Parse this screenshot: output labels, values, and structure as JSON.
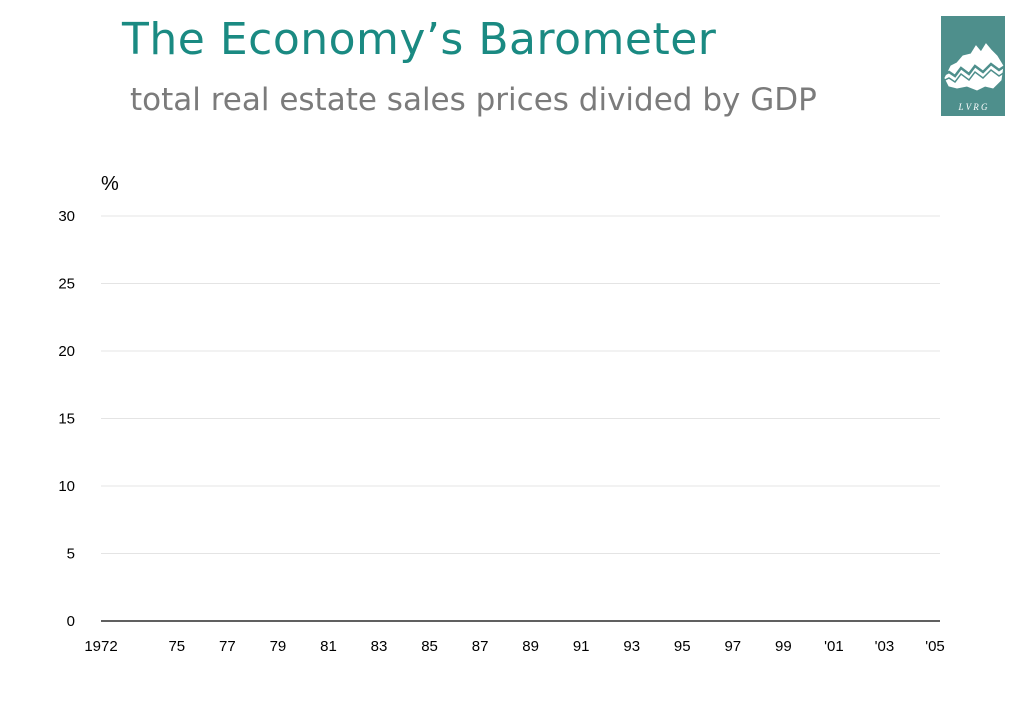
{
  "header": {
    "title": "The Economy’s Barometer",
    "subtitle": "total real estate sales prices divided by GDP"
  },
  "logo": {
    "text": "L V R G",
    "icon": "australia-map-icon",
    "background_color": "#4e8f8c"
  },
  "colors": {
    "title": "#1a8a82",
    "subtitle": "#7b7b7b",
    "grid": "#e4e4e4",
    "axis": "#000000"
  },
  "chart_data": {
    "type": "line",
    "title": "",
    "ylabel": "%",
    "xlabel": "",
    "ylim": [
      0,
      30
    ],
    "y_ticks": [
      0,
      5,
      10,
      15,
      20,
      25,
      30
    ],
    "x_range": [
      1972,
      2005
    ],
    "x_ticks": [
      {
        "year": 1972,
        "label": "1972"
      },
      {
        "year": 1975,
        "label": "75"
      },
      {
        "year": 1977,
        "label": "77"
      },
      {
        "year": 1979,
        "label": "79"
      },
      {
        "year": 1981,
        "label": "81"
      },
      {
        "year": 1983,
        "label": "83"
      },
      {
        "year": 1985,
        "label": "85"
      },
      {
        "year": 1987,
        "label": "87"
      },
      {
        "year": 1989,
        "label": "89"
      },
      {
        "year": 1991,
        "label": "91"
      },
      {
        "year": 1993,
        "label": "93"
      },
      {
        "year": 1995,
        "label": "95"
      },
      {
        "year": 1997,
        "label": "97"
      },
      {
        "year": 1999,
        "label": "99"
      },
      {
        "year": 2001,
        "label": "'01"
      },
      {
        "year": 2003,
        "label": "'03"
      },
      {
        "year": 2005,
        "label": "'05"
      }
    ],
    "grid": true,
    "series": []
  }
}
